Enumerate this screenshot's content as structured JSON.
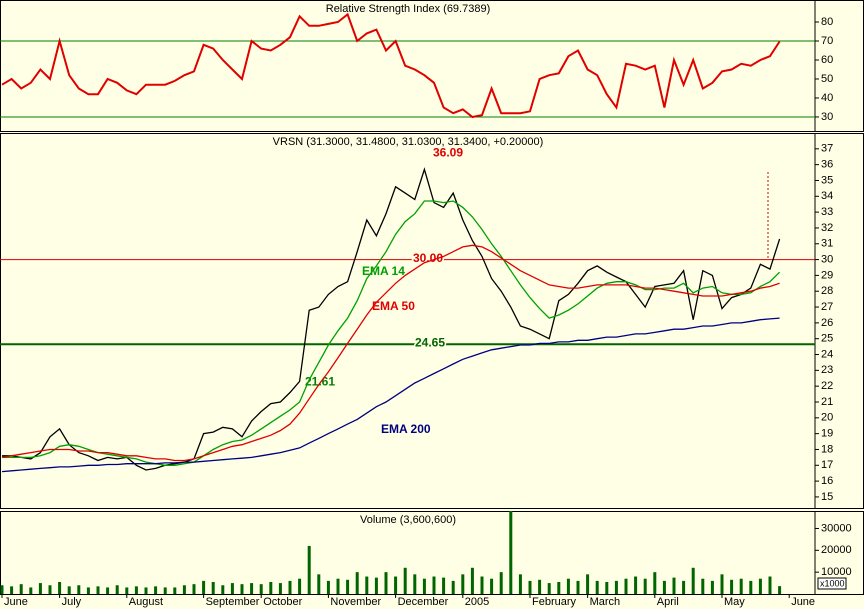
{
  "chart_data": [
    {
      "type": "line",
      "title": "Relative Strength Index (69.7389)",
      "ylim": [
        22.6,
        91.6
      ],
      "yticks": [
        30,
        40,
        50,
        60,
        70,
        80
      ],
      "hlines": [
        {
          "value": 70,
          "color": "#008000"
        },
        {
          "value": 30,
          "color": "#008000"
        }
      ],
      "series": [
        {
          "color": "#e00000",
          "values": [
            47,
            50,
            45,
            48,
            55,
            50,
            70,
            52,
            45,
            42,
            42,
            50,
            48,
            44,
            42,
            47,
            47,
            47,
            49,
            52,
            54,
            68,
            66,
            60,
            55,
            50,
            70,
            66,
            65,
            68,
            72,
            83,
            78,
            78,
            79,
            80,
            84,
            70,
            74,
            76,
            65,
            70,
            57,
            55,
            52,
            48,
            35,
            32,
            34,
            30,
            31,
            45,
            32,
            32,
            32,
            33,
            50,
            52,
            53,
            62,
            65,
            55,
            52,
            42,
            35,
            58,
            57,
            55,
            57,
            35,
            60,
            47,
            60,
            45,
            48,
            54,
            55,
            58,
            57,
            60,
            62,
            69.7389
          ]
        }
      ]
    },
    {
      "type": "line",
      "title": "VRSN (31.3000, 31.4800, 31.0300, 31.3400, +0.20000)",
      "ylim": [
        14.3,
        38
      ],
      "yticks": [
        15,
        16,
        17,
        18,
        19,
        20,
        21,
        22,
        23,
        24,
        25,
        26,
        27,
        28,
        29,
        30,
        31,
        32,
        33,
        34,
        35,
        36,
        37
      ],
      "hlines": [
        {
          "value": 30,
          "label": "30.00",
          "color": "#dd0000"
        },
        {
          "value": 24.65,
          "label": "24.65",
          "color": "#006400"
        }
      ],
      "annotations": [
        {
          "label": "36.09",
          "value": 36.09,
          "color": "#e00000"
        },
        {
          "label": "21.61",
          "value": 21.61,
          "color": "#008000"
        }
      ],
      "series": [
        {
          "color": "#000000",
          "values": [
            17.6,
            17.6,
            17.5,
            17.4,
            17.8,
            18.8,
            19.3,
            18.3,
            17.8,
            17.6,
            17.3,
            17.5,
            17.4,
            17.5,
            17.0,
            16.7,
            16.8,
            17.0,
            17.1,
            17.2,
            17.4,
            19.0,
            19.1,
            19.4,
            19.3,
            18.8,
            19.8,
            20.4,
            20.9,
            21.0,
            21.6,
            22.3,
            26.8,
            27.0,
            27.8,
            28.3,
            28.6,
            30.5,
            32.5,
            31.5,
            32.9,
            34.6,
            34.2,
            33.8,
            35.7,
            33.6,
            33.3,
            34.2,
            32.5,
            31.2,
            30.2,
            28.8,
            28.0,
            27.0,
            25.8,
            25.6,
            25.3,
            25.0,
            27.4,
            27.8,
            28.5,
            29.3,
            29.6,
            29.2,
            28.9,
            28.6,
            27.8,
            27.0,
            28.3,
            28.4,
            28.5,
            29.3,
            26.2,
            29.3,
            29.0,
            26.9,
            27.6,
            27.8,
            28.2,
            29.7,
            29.4,
            31.3
          ]
        },
        {
          "name": "EMA 14",
          "color": "#00a000",
          "values": [
            17.5,
            17.5,
            17.5,
            17.5,
            17.6,
            17.8,
            18.2,
            18.3,
            18.2,
            18.0,
            17.8,
            17.7,
            17.6,
            17.5,
            17.4,
            17.2,
            17.1,
            17.0,
            17.0,
            17.1,
            17.2,
            17.6,
            18.0,
            18.3,
            18.5,
            18.6,
            18.9,
            19.3,
            19.7,
            20.1,
            20.5,
            21.0,
            22.4,
            23.5,
            24.6,
            25.5,
            26.3,
            27.4,
            28.8,
            29.6,
            30.5,
            31.6,
            32.4,
            32.9,
            33.7,
            33.7,
            33.6,
            33.7,
            33.3,
            32.7,
            31.9,
            31.0,
            30.2,
            29.3,
            28.4,
            27.6,
            26.9,
            26.3,
            26.5,
            26.8,
            27.2,
            27.7,
            28.2,
            28.5,
            28.6,
            28.6,
            28.4,
            28.1,
            28.1,
            28.2,
            28.2,
            28.5,
            27.9,
            28.2,
            28.3,
            27.9,
            27.8,
            27.8,
            27.9,
            28.3,
            28.6,
            29.2
          ]
        },
        {
          "name": "EMA 50",
          "color": "#e00000",
          "values": [
            17.5,
            17.6,
            17.7,
            17.8,
            17.9,
            18.0,
            18.0,
            18.0,
            17.9,
            17.9,
            17.8,
            17.8,
            17.7,
            17.6,
            17.6,
            17.5,
            17.4,
            17.4,
            17.3,
            17.3,
            17.4,
            17.6,
            17.8,
            18.0,
            18.2,
            18.3,
            18.5,
            18.7,
            18.9,
            19.2,
            19.6,
            20.3,
            21.2,
            22.1,
            22.9,
            23.8,
            24.7,
            25.6,
            26.5,
            27.3,
            27.9,
            28.5,
            29.0,
            29.4,
            29.8,
            30.0,
            30.2,
            30.5,
            30.8,
            30.9,
            30.8,
            30.5,
            30.1,
            29.7,
            29.3,
            29.0,
            28.7,
            28.4,
            28.3,
            28.2,
            28.2,
            28.3,
            28.4,
            28.4,
            28.4,
            28.4,
            28.3,
            28.2,
            28.2,
            28.1,
            28.0,
            27.9,
            27.8,
            27.7,
            27.7,
            27.7,
            27.8,
            27.9,
            28.0,
            28.2,
            28.3,
            28.5
          ]
        },
        {
          "name": "EMA 200",
          "color": "#000080",
          "values": [
            16.6,
            16.65,
            16.7,
            16.75,
            16.8,
            16.85,
            16.9,
            16.9,
            16.95,
            17.0,
            17.0,
            17.05,
            17.05,
            17.1,
            17.1,
            17.1,
            17.1,
            17.15,
            17.15,
            17.2,
            17.2,
            17.25,
            17.3,
            17.35,
            17.4,
            17.45,
            17.5,
            17.6,
            17.7,
            17.8,
            17.95,
            18.1,
            18.4,
            18.7,
            19.0,
            19.3,
            19.6,
            19.9,
            20.3,
            20.7,
            21.0,
            21.4,
            21.8,
            22.2,
            22.5,
            22.8,
            23.1,
            23.4,
            23.7,
            23.9,
            24.1,
            24.3,
            24.4,
            24.5,
            24.6,
            24.6,
            24.7,
            24.7,
            24.8,
            24.8,
            24.9,
            24.9,
            25.0,
            25.1,
            25.1,
            25.2,
            25.3,
            25.3,
            25.4,
            25.5,
            25.6,
            25.6,
            25.7,
            25.8,
            25.8,
            25.9,
            26.0,
            26.0,
            26.1,
            26.2,
            26.25,
            26.3
          ]
        }
      ]
    },
    {
      "type": "bar",
      "title": "Volume (3,600,600)",
      "unit_label": "x1000",
      "color": "#006400",
      "ylim": [
        0,
        38000
      ],
      "yticks": [
        10000,
        20000,
        30000
      ],
      "categories": [
        "June",
        null,
        null,
        null,
        null,
        null,
        "July",
        null,
        null,
        null,
        null,
        null,
        null,
        "August",
        null,
        null,
        null,
        null,
        null,
        null,
        null,
        "September",
        null,
        null,
        null,
        null,
        null,
        "October",
        null,
        null,
        null,
        null,
        null,
        null,
        "November",
        null,
        null,
        null,
        null,
        null,
        null,
        "December",
        null,
        null,
        null,
        null,
        null,
        null,
        "2005",
        null,
        null,
        null,
        null,
        null,
        null,
        "February",
        null,
        null,
        null,
        null,
        null,
        "March",
        null,
        null,
        null,
        null,
        null,
        null,
        "April",
        null,
        null,
        null,
        null,
        null,
        null,
        "May",
        null,
        null,
        null,
        null,
        null,
        null,
        "June",
        null
      ],
      "values": [
        4000,
        3500,
        4500,
        3000,
        5000,
        4000,
        5500,
        3500,
        4000,
        3000,
        3500,
        3000,
        4000,
        3000,
        3500,
        3000,
        3500,
        3000,
        3000,
        4000,
        4500,
        6000,
        5500,
        4000,
        5000,
        4500,
        5000,
        4500,
        5500,
        5000,
        6000,
        7000,
        22000,
        9000,
        6000,
        7000,
        6500,
        10000,
        8000,
        7500,
        10000,
        8000,
        12000,
        9000,
        7000,
        8000,
        7500,
        6000,
        9000,
        12000,
        8000,
        7000,
        10000,
        38000,
        9000,
        6000,
        6500,
        5000,
        5500,
        7000,
        6000,
        9000,
        6000,
        5500,
        6000,
        7000,
        8000,
        7000,
        10000,
        6000,
        7500,
        6000,
        12000,
        7000,
        6000,
        9000,
        6500,
        7000,
        6000,
        7000,
        8000,
        3600.6,
        null,
        null
      ]
    }
  ]
}
